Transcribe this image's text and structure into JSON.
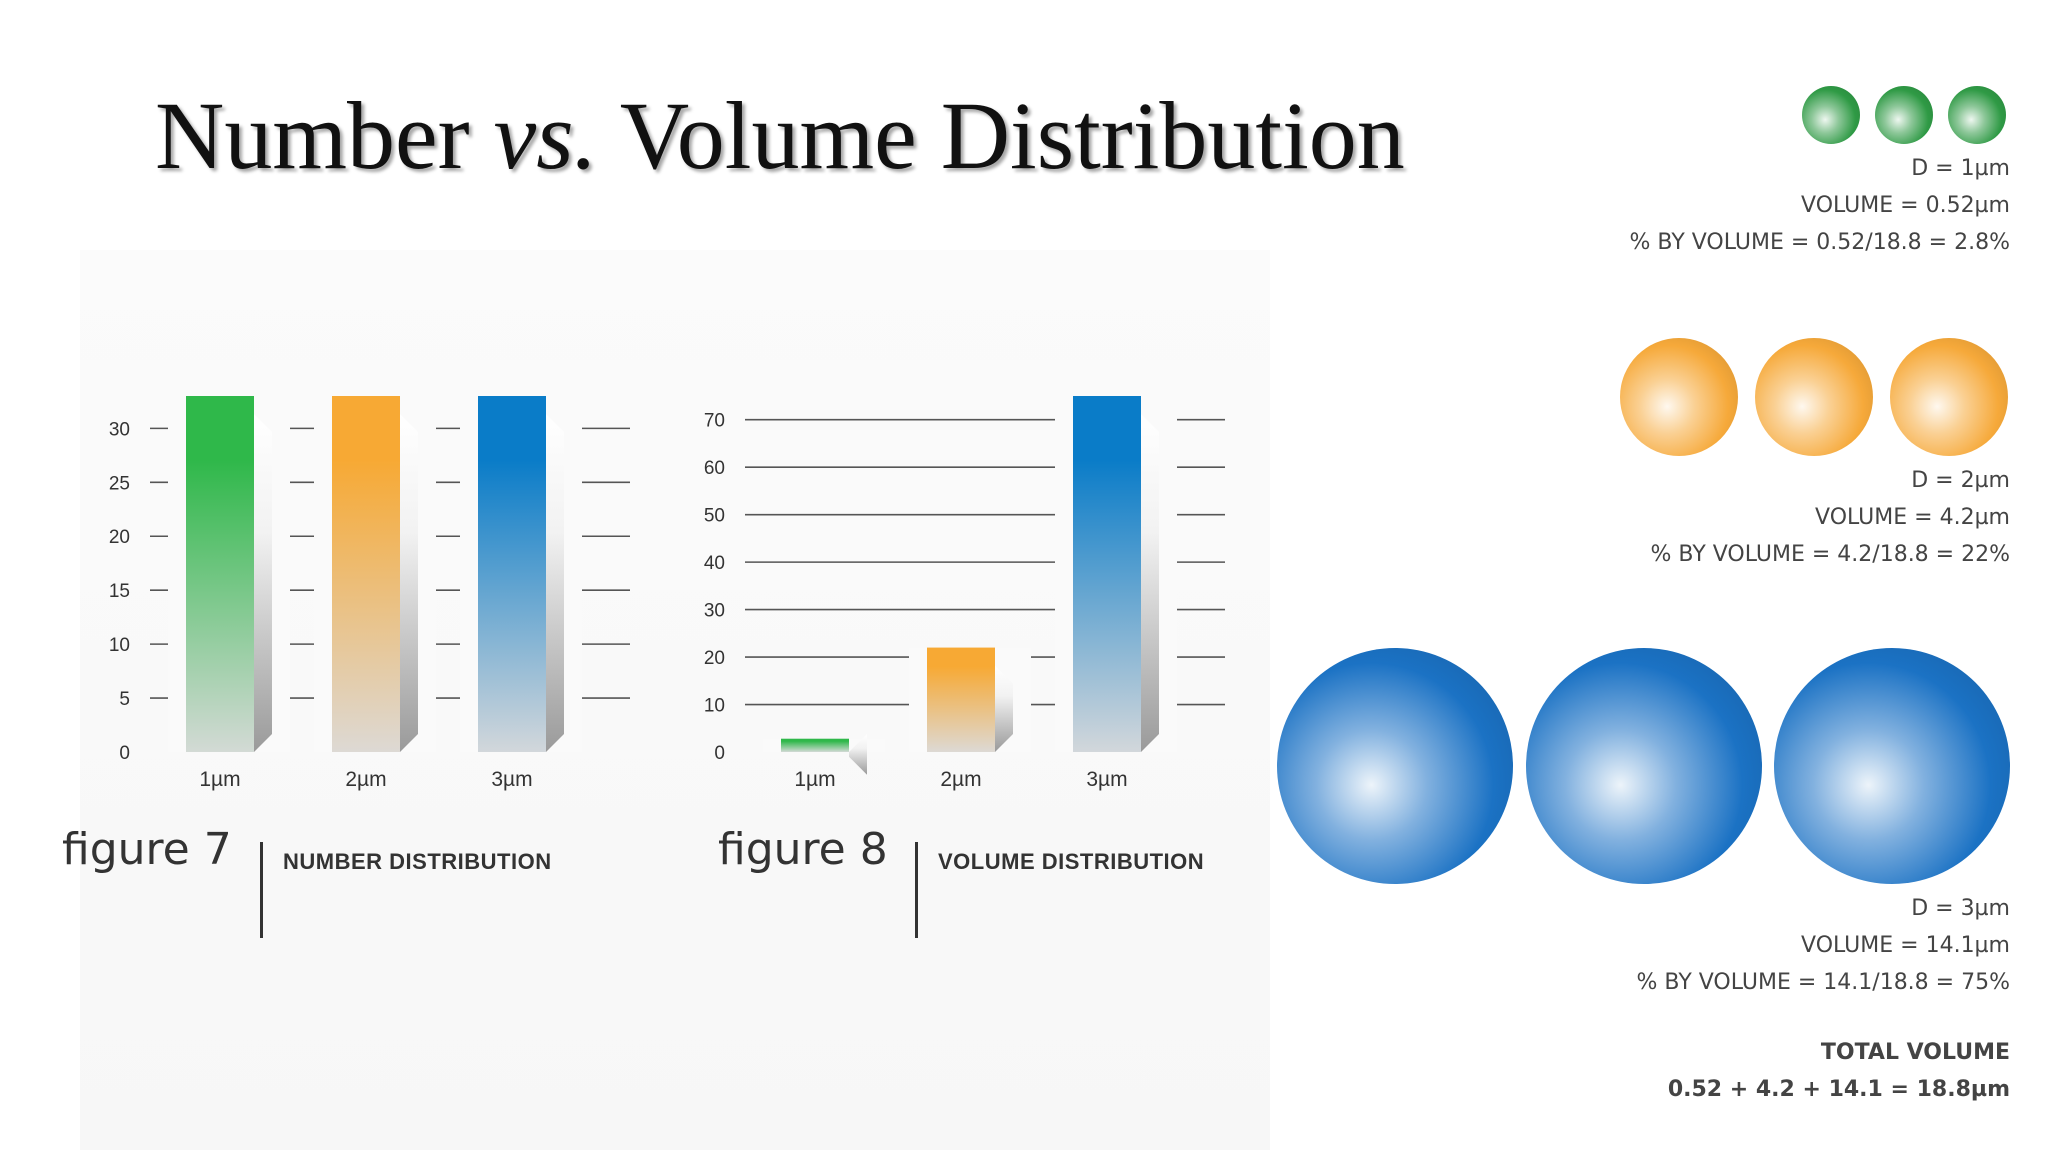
{
  "slide": {
    "title_part1": "Number ",
    "title_vs": "vs.",
    "title_part2": " Volume Distribution"
  },
  "chart_data": [
    {
      "type": "bar",
      "figure_label": "figure 7",
      "caption": "NUMBER DISTRIBUTION",
      "categories": [
        "1µm",
        "2µm",
        "3µm"
      ],
      "values": [
        33,
        33,
        33
      ],
      "colors": [
        "#2fb84a",
        "#f7a934",
        "#0a7cc8"
      ],
      "yticks": [
        0,
        5,
        10,
        15,
        20,
        25,
        30
      ],
      "ylim": [
        0,
        33
      ],
      "grid": true
    },
    {
      "type": "bar",
      "figure_label": "figure 8",
      "caption": "VOLUME DISTRIBUTION",
      "categories": [
        "1µm",
        "2µm",
        "3µm"
      ],
      "values": [
        2.8,
        22,
        75
      ],
      "colors": [
        "#2fb84a",
        "#f7a934",
        "#0a7cc8"
      ],
      "yticks": [
        0,
        10,
        20,
        30,
        40,
        50,
        60,
        70
      ],
      "ylim": [
        0,
        75
      ],
      "grid": true
    }
  ],
  "particles": {
    "small": {
      "color": "#2f9a45",
      "diameter": "D = 1µm",
      "volume": "VOLUME = 0.52µm",
      "percent": "% BY VOLUME = 0.52/18.8 = 2.8%"
    },
    "medium": {
      "color": "#f6a93a",
      "diameter": "D = 2µm",
      "volume": "VOLUME = 4.2µm",
      "percent": "% BY VOLUME = 4.2/18.8 = 22%"
    },
    "large": {
      "color": "#1b72c4",
      "diameter": "D = 3µm",
      "volume": "VOLUME = 14.1µm",
      "percent": "% BY VOLUME = 14.1/18.8 = 75%"
    },
    "total_label": "TOTAL VOLUME",
    "total_equation": "0.52 + 4.2 + 14.1 = 18.8µm"
  }
}
